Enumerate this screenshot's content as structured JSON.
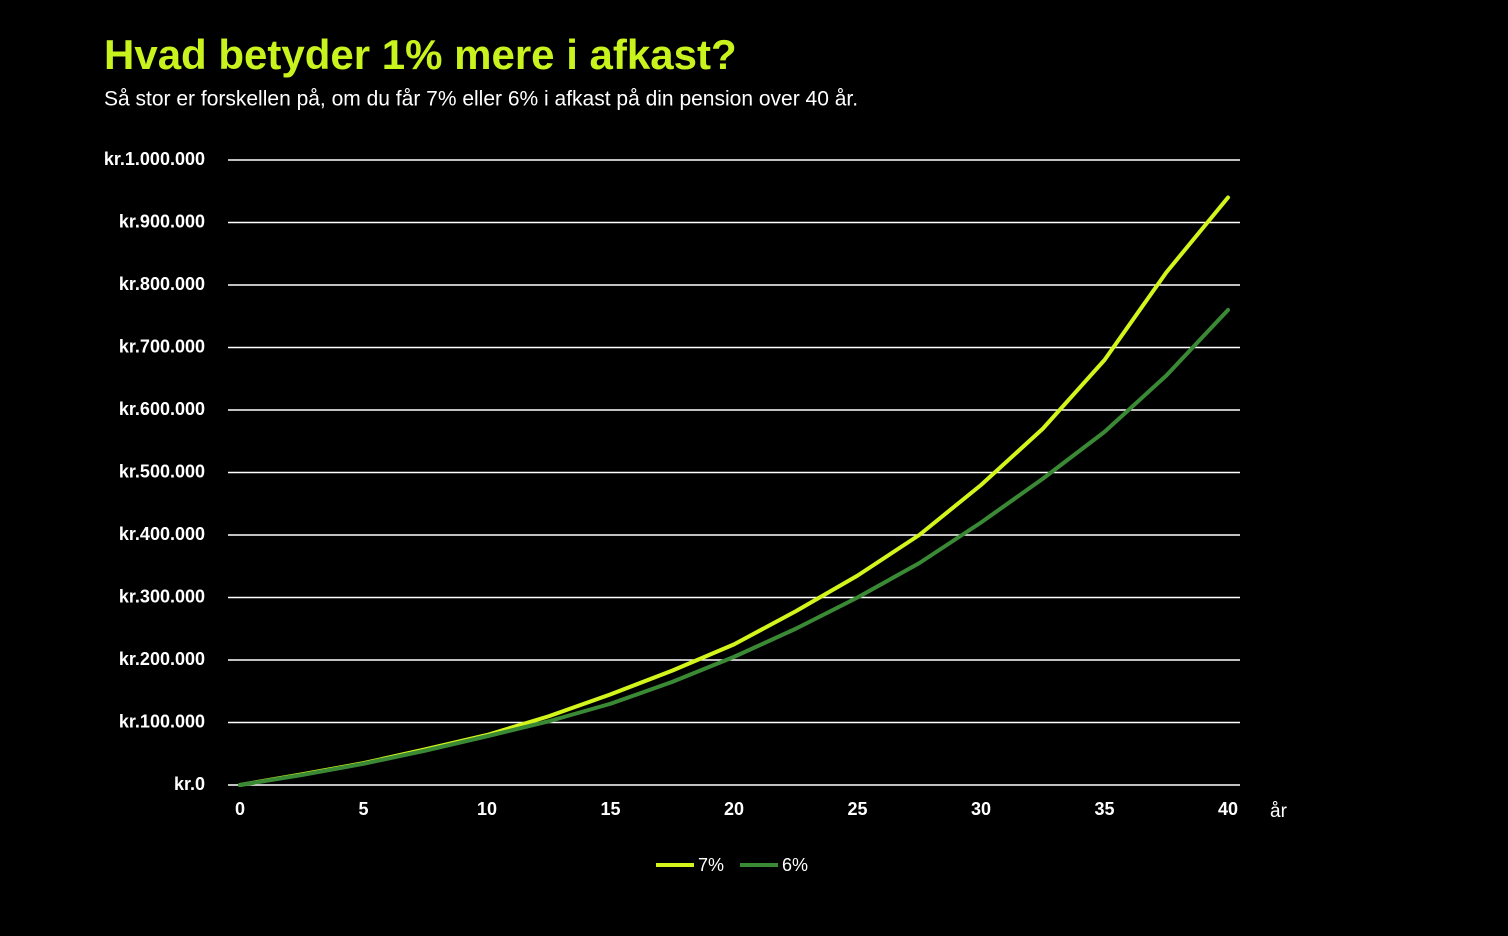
{
  "chart_data": {
    "type": "line",
    "title": "Hvad betyder 1% mere i afkast?",
    "subtitle": "Så stor er forskellen på, om du får 7% eller 6% i afkast på din pension over 40 år.",
    "x_label": "år",
    "x": [
      0,
      2.5,
      5,
      7.5,
      10,
      12.5,
      15,
      17.5,
      20,
      22.5,
      25,
      27.5,
      30,
      32.5,
      35,
      37.5,
      40
    ],
    "series": [
      {
        "name": "7%",
        "color": "#d4f51c",
        "values": [
          0,
          17000,
          35000,
          57000,
          80000,
          110000,
          145000,
          183000,
          225000,
          278000,
          335000,
          400000,
          480000,
          570000,
          680000,
          820000,
          940000
        ]
      },
      {
        "name": "6%",
        "color": "#3a8a35",
        "values": [
          0,
          16000,
          34000,
          55000,
          78000,
          102000,
          130000,
          165000,
          205000,
          250000,
          300000,
          355000,
          420000,
          490000,
          565000,
          655000,
          760000
        ]
      }
    ],
    "xlim": [
      0,
      40
    ],
    "xticks": [
      0,
      5,
      10,
      15,
      20,
      25,
      30,
      35,
      40
    ],
    "ylim": [
      0,
      1000000
    ],
    "yticks": [
      {
        "value": 0,
        "label": "kr.0"
      },
      {
        "value": 100000,
        "label": "kr.100.000"
      },
      {
        "value": 200000,
        "label": "kr.200.000"
      },
      {
        "value": 300000,
        "label": "kr.300.000"
      },
      {
        "value": 400000,
        "label": "kr.400.000"
      },
      {
        "value": 500000,
        "label": "kr.500.000"
      },
      {
        "value": 600000,
        "label": "kr.600.000"
      },
      {
        "value": 700000,
        "label": "kr.700.000"
      },
      {
        "value": 800000,
        "label": "kr.800.000"
      },
      {
        "value": 900000,
        "label": "kr.900.000"
      },
      {
        "value": 1000000,
        "label": "kr.1.000.000"
      }
    ],
    "grid": true,
    "legend": "bottom",
    "title_color": "#c8f31d"
  }
}
